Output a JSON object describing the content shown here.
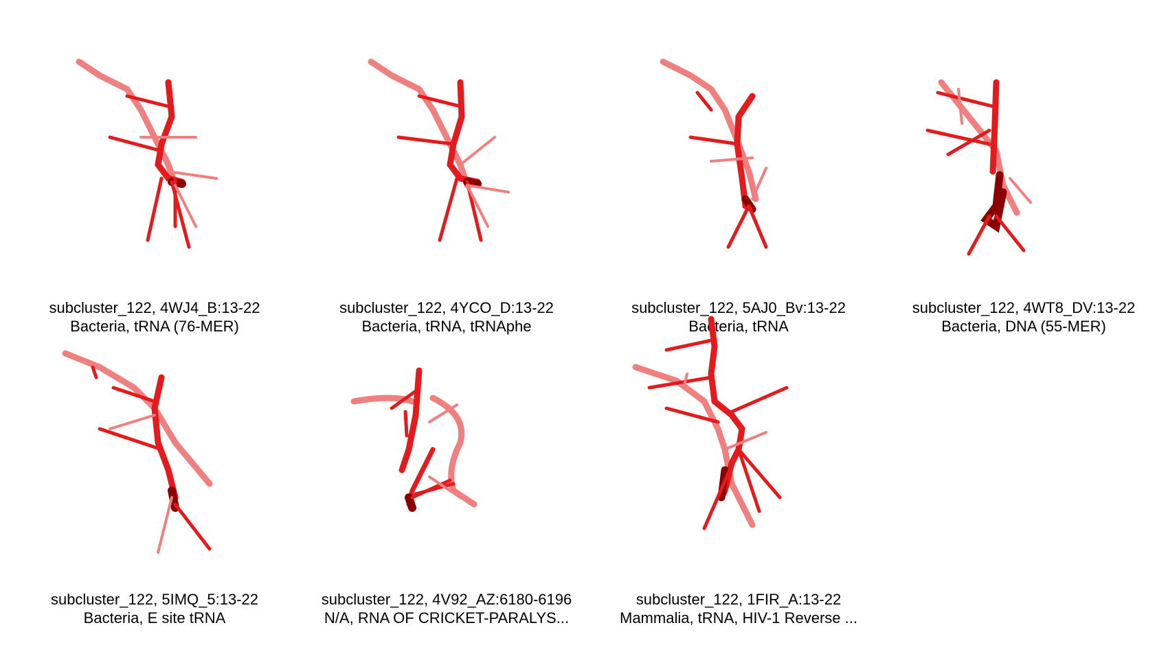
{
  "colors": {
    "structure_red": "#e41a1c",
    "structure_dark": "#8b0000",
    "structure_light": "#f08080"
  },
  "panels": [
    {
      "title": "subcluster_122, 4WJ4_B:13-22",
      "subtitle": "Bacteria, tRNA (76-MER)"
    },
    {
      "title": "subcluster_122, 4YCO_D:13-22",
      "subtitle": "Bacteria, tRNA, tRNAphe"
    },
    {
      "title": "subcluster_122, 5AJ0_Bv:13-22",
      "subtitle": "Bacteria, tRNA"
    },
    {
      "title": "subcluster_122, 4WT8_DV:13-22",
      "subtitle": "Bacteria, DNA (55-MER)"
    },
    {
      "title": "subcluster_122, 5IMQ_5:13-22",
      "subtitle": "Bacteria, E site tRNA"
    },
    {
      "title": "subcluster_122, 4V92_AZ:6180-6196",
      "subtitle": "N/A, RNA OF CRICKET-PARALYS..."
    },
    {
      "title": "subcluster_122, 1FIR_A:13-22",
      "subtitle": "Mammalia, tRNA, HIV-1 Reverse ..."
    }
  ]
}
